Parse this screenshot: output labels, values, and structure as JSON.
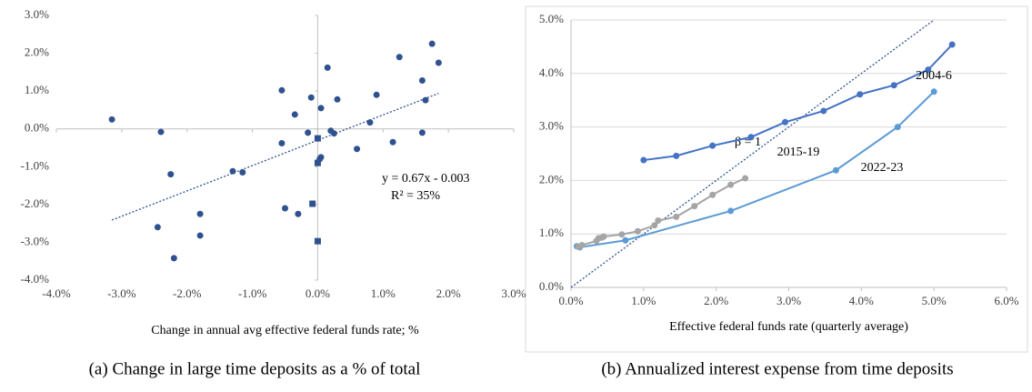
{
  "chart_data": [
    {
      "type": "scatter",
      "caption": "(a) Change in large time deposits as a % of total",
      "x_label": "Change in annual avg effective federal funds rate; %",
      "color": "#2f528f",
      "series": [
        {
          "marker": "circle",
          "x": [
            -3.15,
            -2.4,
            -2.25,
            -2.45,
            -2.2,
            -1.8,
            -1.8,
            -1.3,
            -1.15,
            -0.55,
            -0.55,
            -0.5,
            -0.35,
            -0.3,
            -0.15,
            -0.1,
            0.05,
            0.05,
            0.03,
            0.15,
            0.2,
            0.25,
            0.3,
            0.6,
            0.8,
            0.9,
            1.15,
            1.25,
            1.6,
            1.6,
            1.65,
            1.75,
            1.85
          ],
          "values": [
            0.25,
            -0.08,
            -1.2,
            -2.6,
            -3.42,
            -2.25,
            -2.82,
            -1.12,
            -1.15,
            1.02,
            -0.38,
            -2.1,
            0.38,
            -2.25,
            -0.1,
            0.83,
            0.55,
            -0.75,
            -0.8,
            1.62,
            -0.05,
            -0.12,
            0.78,
            -0.53,
            0.17,
            0.9,
            -0.35,
            1.9,
            1.28,
            -0.1,
            0.76,
            2.25,
            1.75
          ]
        },
        {
          "marker": "square",
          "x": [
            0,
            0,
            -0.08,
            0
          ],
          "values": [
            -0.25,
            -0.9,
            -1.98,
            -2.97
          ]
        }
      ],
      "trendline": {
        "slope": 0.67,
        "intercept": -0.3,
        "x": [
          -3.15,
          1.85
        ]
      },
      "annotations": [
        "y = 0.67x - 0.003",
        "R² = 35%"
      ],
      "xlim": [
        -4,
        3
      ],
      "xticks": [
        {
          "value": -4,
          "label": "-4.0%"
        },
        {
          "value": -3,
          "label": "-3.0%"
        },
        {
          "value": -2,
          "label": "-2.0%"
        },
        {
          "value": -1,
          "label": "-1.0%"
        },
        {
          "value": 0,
          "label": "0.0%"
        },
        {
          "value": 1,
          "label": "1.0%"
        },
        {
          "value": 2,
          "label": "2.0%"
        },
        {
          "value": 3,
          "label": "3.0%"
        }
      ],
      "ylim": [
        -4,
        3
      ],
      "yticks": [
        {
          "value": -4,
          "label": "-4.0%"
        },
        {
          "value": -3,
          "label": "-3.0%"
        },
        {
          "value": -2,
          "label": "-2.0%"
        },
        {
          "value": -1,
          "label": "-1.0%"
        },
        {
          "value": 0,
          "label": "0.0%"
        },
        {
          "value": 1,
          "label": "1.0%"
        },
        {
          "value": 2,
          "label": "2.0%"
        },
        {
          "value": 3,
          "label": "3.0%"
        }
      ],
      "grid": false
    },
    {
      "type": "line",
      "caption": "(b) Annualized interest expense from time deposits",
      "x_label": "Effective federal funds rate (quarterly average)",
      "series": [
        {
          "name": "2004-6",
          "color": "#4472c4",
          "x": [
            1.0,
            1.45,
            1.95,
            2.48,
            2.95,
            3.48,
            3.98,
            4.45,
            4.92,
            5.25
          ],
          "values": [
            2.38,
            2.46,
            2.65,
            2.81,
            3.09,
            3.3,
            3.61,
            3.78,
            4.07,
            4.54
          ]
        },
        {
          "name": "2022-23",
          "color": "#5b9bd5",
          "x": [
            0.08,
            0.12,
            0.75,
            2.2,
            3.65,
            4.5,
            5.0
          ],
          "values": [
            0.77,
            0.75,
            0.88,
            1.43,
            2.19,
            3.0,
            3.66
          ]
        },
        {
          "name": "2015-19",
          "color": "#a5a5a5",
          "x": [
            0.1,
            0.15,
            0.35,
            0.38,
            0.42,
            0.45,
            0.7,
            0.92,
            1.15,
            1.2,
            1.45,
            1.7,
            1.95,
            2.2,
            2.4
          ],
          "values": [
            0.76,
            0.79,
            0.87,
            0.92,
            0.93,
            0.95,
            0.99,
            1.05,
            1.16,
            1.25,
            1.32,
            1.52,
            1.73,
            1.92,
            2.04
          ]
        }
      ],
      "reference_line": {
        "slope": 1,
        "intercept": 0,
        "color": "#2f528f"
      },
      "annotations": [
        "β = 1"
      ],
      "xlim": [
        0,
        6
      ],
      "xticks": [
        {
          "value": 0,
          "label": "0.0%"
        },
        {
          "value": 1,
          "label": "1.0%"
        },
        {
          "value": 2,
          "label": "2.0%"
        },
        {
          "value": 3,
          "label": "3.0%"
        },
        {
          "value": 4,
          "label": "4.0%"
        },
        {
          "value": 5,
          "label": "5.0%"
        },
        {
          "value": 6,
          "label": "6.0%"
        }
      ],
      "ylim": [
        0,
        5
      ],
      "yticks": [
        {
          "value": 0,
          "label": "0.0%"
        },
        {
          "value": 1,
          "label": "1.0%"
        },
        {
          "value": 2,
          "label": "2.0%"
        },
        {
          "value": 3,
          "label": "3.0%"
        },
        {
          "value": 4,
          "label": "4.0%"
        },
        {
          "value": 5,
          "label": "5.0%"
        }
      ],
      "grid": true
    }
  ]
}
